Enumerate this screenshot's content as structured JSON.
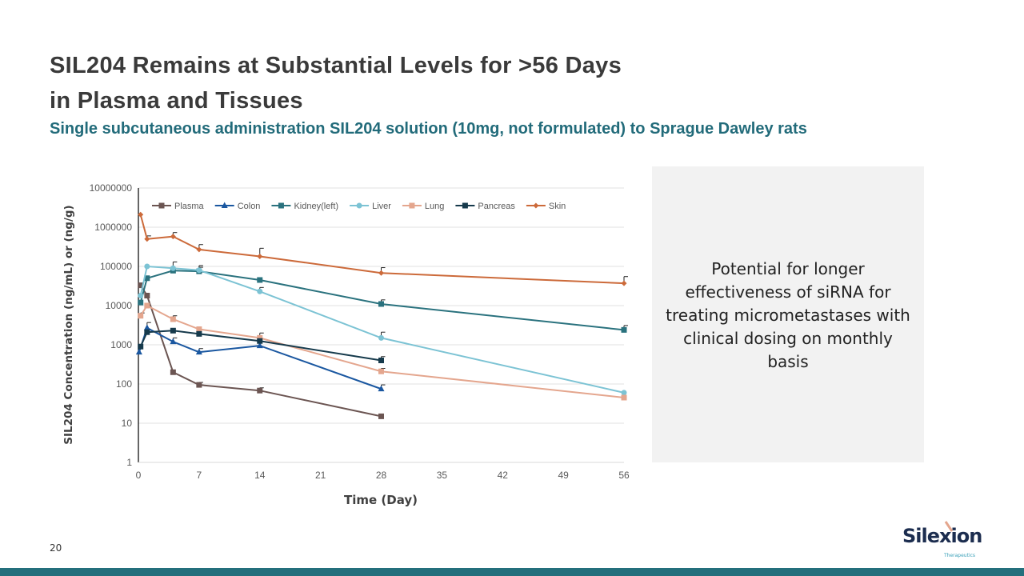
{
  "slide": {
    "title_line1": "SIL204  Remains at Substantial Levels for >56 Days",
    "title_line2": "in Plasma and Tissues",
    "subtitle": "Single subcutaneous administration SIL204 solution (10mg, not formulated) to Sprague Dawley rats",
    "note": "Potential for longer effectiveness of siRNA for treating micrometastases with clinical dosing on monthly basis",
    "page_number": "20",
    "logo_name": "Silexion",
    "logo_sub": "Therapeutics",
    "footer_color": "#246f7c"
  },
  "chart_data": {
    "type": "line",
    "xlabel": "Time (Day)",
    "ylabel": "SIL204 Concentration (ng/mL) or (ng/g)",
    "x_ticks": [
      0,
      7,
      14,
      21,
      28,
      35,
      42,
      49,
      56
    ],
    "xlim": [
      0,
      56
    ],
    "y_scale": "log",
    "ylim": [
      1,
      10000000
    ],
    "y_ticks": [
      1,
      10,
      100,
      1000,
      10000,
      100000,
      1000000,
      10000000
    ],
    "y_tick_labels": [
      "1",
      "10",
      "100",
      "1000",
      "10000",
      "100000",
      "1000000",
      "10000000"
    ],
    "grid": "horizontal",
    "legend": "top",
    "series": [
      {
        "name": "Plasma",
        "color": "#6b5552",
        "marker": "square",
        "x": [
          0.25,
          1,
          4,
          7,
          14,
          28
        ],
        "y": [
          33000,
          18000,
          200,
          95,
          68,
          15
        ],
        "err": [
          0,
          0,
          0,
          15,
          12,
          0
        ]
      },
      {
        "name": "Colon",
        "color": "#1a57a0",
        "marker": "triangle",
        "x": [
          0.083,
          1,
          4,
          7,
          14,
          28
        ],
        "y": [
          650,
          2700,
          1200,
          650,
          950,
          75
        ],
        "err": [
          0,
          1000,
          300,
          150,
          0,
          20
        ]
      },
      {
        "name": "Kidney(left)",
        "color": "#2a727e",
        "marker": "square",
        "x": [
          0.25,
          1,
          4,
          7,
          14,
          28,
          56
        ],
        "y": [
          12000,
          50000,
          78000,
          75000,
          45000,
          11000,
          2400
        ],
        "err": [
          0,
          0,
          0,
          20000,
          0,
          3000,
          700
        ]
      },
      {
        "name": "Liver",
        "color": "#7cc3d4",
        "marker": "circle",
        "x": [
          0.25,
          1,
          4,
          7,
          14,
          28,
          56
        ],
        "y": [
          18000,
          100000,
          90000,
          80000,
          23000,
          1500,
          60
        ],
        "err": [
          0,
          0,
          40000,
          25000,
          6000,
          600,
          0
        ]
      },
      {
        "name": "Lung",
        "color": "#e4a68e",
        "marker": "square",
        "x": [
          0.25,
          1,
          4,
          7,
          14,
          28,
          56
        ],
        "y": [
          5500,
          10000,
          4500,
          2500,
          1500,
          210,
          45
        ],
        "err": [
          1000,
          0,
          1000,
          0,
          500,
          40,
          0
        ]
      },
      {
        "name": "Pancreas",
        "color": "#163a4c",
        "marker": "square",
        "x": [
          0.25,
          1,
          4,
          7,
          14,
          28
        ],
        "y": [
          900,
          2100,
          2300,
          1900,
          1250,
          400
        ],
        "err": [
          0,
          0,
          0,
          0,
          0,
          100
        ]
      },
      {
        "name": "Skin",
        "color": "#cc6a3a",
        "marker": "diamond",
        "x": [
          0.25,
          1,
          4,
          7,
          14,
          28,
          56
        ],
        "y": [
          2100000,
          500000,
          580000,
          270000,
          180000,
          68000,
          37000
        ],
        "err": [
          0,
          100000,
          150000,
          90000,
          110000,
          25000,
          18000
        ]
      }
    ]
  }
}
